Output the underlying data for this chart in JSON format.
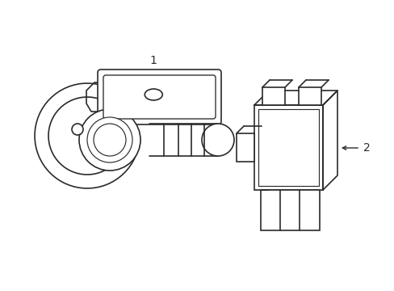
{
  "bg_color": "#ffffff",
  "line_color": "#2a2a2a",
  "line_width": 1.2,
  "label1_text": "1",
  "label2_text": "2"
}
